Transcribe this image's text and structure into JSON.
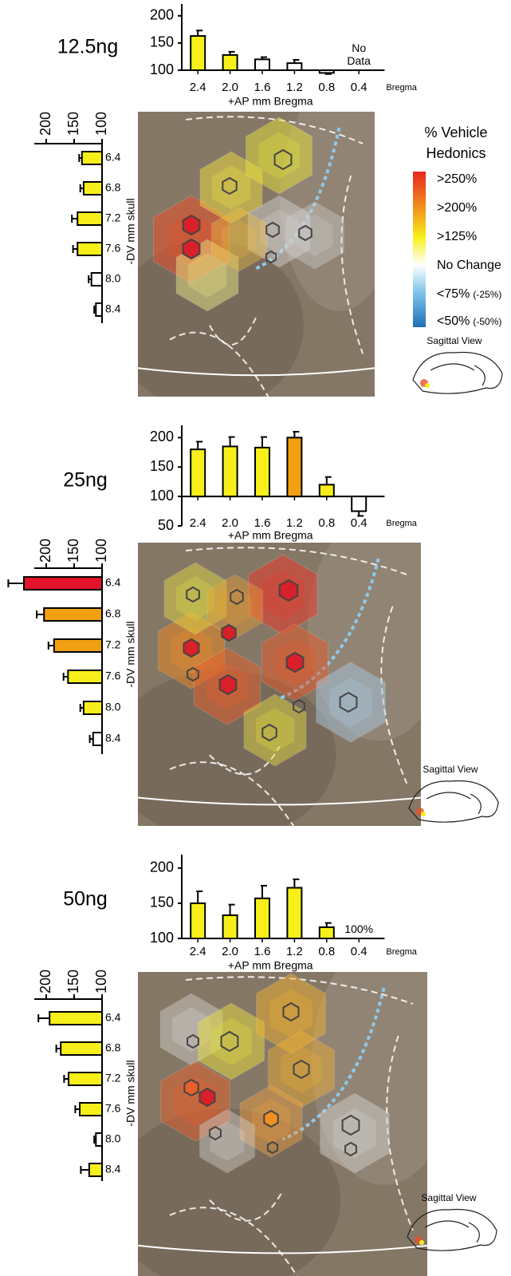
{
  "chart_data": [
    {
      "type": "bar",
      "title": "12.5ng",
      "categories": [
        "2.4",
        "2.0",
        "1.6",
        "1.2",
        "0.8",
        "0.4"
      ],
      "values": [
        163,
        128,
        120,
        113,
        95,
        null
      ],
      "errors": [
        10,
        6,
        4,
        6,
        2,
        null
      ],
      "colors": [
        "#f7ef1a",
        "#f7ef1a",
        "#ffffff",
        "#ffffff",
        "#ffffff",
        null
      ],
      "baseline": 100,
      "ylim": [
        100,
        210
      ],
      "yticks": [
        100,
        150,
        200
      ],
      "xlabel": "+AP mm Bregma",
      "x_unit_label": "Bregma",
      "annotation": "No Data"
    },
    {
      "type": "hbar",
      "categories": [
        "6.4",
        "6.8",
        "7.2",
        "7.6",
        "8.0",
        "8.4"
      ],
      "values": [
        136,
        133,
        144,
        144,
        119,
        111
      ],
      "errors": [
        5,
        6,
        10,
        8,
        5,
        3
      ],
      "colors": [
        "#f7ef1a",
        "#f7ef1a",
        "#f7ef1a",
        "#f7ef1a",
        "#ffffff",
        "#ffffff"
      ],
      "baseline": 100,
      "xlim": [
        250,
        90
      ],
      "xticks": [
        200,
        150,
        100
      ],
      "ylabel": "-DV mm skull"
    },
    {
      "type": "bar",
      "title": "25ng",
      "categories": [
        "2.4",
        "2.0",
        "1.6",
        "1.2",
        "0.8",
        "0.4"
      ],
      "values": [
        180,
        185,
        183,
        200,
        120,
        75
      ],
      "errors": [
        13,
        16,
        18,
        10,
        13,
        8
      ],
      "colors": [
        "#f7ef1a",
        "#f7ef1a",
        "#f7ef1a",
        "#f0a010",
        "#f7ef1a",
        "#ffffff"
      ],
      "baseline": 100,
      "ylim": [
        50,
        210
      ],
      "yticks": [
        50,
        100,
        150,
        200
      ],
      "xlabel": "+AP mm Bregma",
      "x_unit_label": "Bregma"
    },
    {
      "type": "hbar",
      "categories": [
        "6.4",
        "6.8",
        "7.2",
        "7.6",
        "8.0",
        "8.4"
      ],
      "values": [
        240,
        204,
        186,
        161,
        133,
        116
      ],
      "errors": [
        28,
        13,
        10,
        8,
        6,
        6
      ],
      "colors": [
        "#e2132b",
        "#f0a010",
        "#f0a010",
        "#f7ef1a",
        "#f7ef1a",
        "#ffffff"
      ],
      "baseline": 100,
      "xlim": [
        250,
        90
      ],
      "xticks": [
        200,
        150,
        100
      ],
      "ylabel": "-DV mm skull"
    },
    {
      "type": "bar",
      "title": "50ng",
      "categories": [
        "2.4",
        "2.0",
        "1.6",
        "1.2",
        "0.8",
        "0.4"
      ],
      "values": [
        150,
        133,
        157,
        172,
        116,
        null
      ],
      "errors": [
        17,
        15,
        18,
        12,
        6,
        null
      ],
      "colors": [
        "#f7ef1a",
        "#f7ef1a",
        "#f7ef1a",
        "#f7ef1a",
        "#f7ef1a",
        null
      ],
      "baseline": 100,
      "ylim": [
        100,
        210
      ],
      "yticks": [
        100,
        150,
        200
      ],
      "xlabel": "+AP mm Bregma",
      "x_unit_label": "Bregma",
      "annotation": "100%"
    },
    {
      "type": "hbar",
      "categories": [
        "6.4",
        "6.8",
        "7.2",
        "7.6",
        "8.0",
        "8.4"
      ],
      "values": [
        194,
        174,
        160,
        140,
        111,
        123
      ],
      "errors": [
        20,
        8,
        8,
        8,
        3,
        15
      ],
      "colors": [
        "#f7ef1a",
        "#f7ef1a",
        "#f7ef1a",
        "#f7ef1a",
        "#ffffff",
        "#f7ef1a"
      ],
      "baseline": 100,
      "xlim": [
        250,
        90
      ],
      "xticks": [
        200,
        150,
        100
      ],
      "ylabel": "-DV mm skull"
    }
  ],
  "legend": {
    "title_lines": [
      "% Vehicle",
      "Hedonics"
    ],
    "entries": [
      {
        "label": ">250%"
      },
      {
        "label": ">200%"
      },
      {
        "label": ">125%"
      },
      {
        "label": "No Change"
      },
      {
        "label": "<75%",
        "sub": "(-25%)"
      },
      {
        "label": "<50%",
        "sub": "(-50%)"
      }
    ]
  },
  "maps": [
    {
      "label": "Sagittal View"
    },
    {
      "label": "Sagittal View"
    },
    {
      "label": "Sagittal View"
    }
  ]
}
